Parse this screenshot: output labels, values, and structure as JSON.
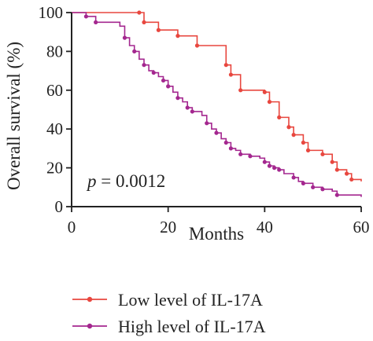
{
  "chart_data": {
    "type": "line",
    "xlabel": "Months",
    "ylabel": "Overall survival (%)",
    "xlim": [
      0,
      60
    ],
    "ylim": [
      0,
      100
    ],
    "xticks": [
      0,
      20,
      40,
      60
    ],
    "yticks": [
      0,
      20,
      40,
      60,
      80,
      100
    ],
    "xtick_labels": [
      "0",
      "20",
      "40",
      "60"
    ],
    "ytick_labels": [
      "0",
      "20",
      "40",
      "60",
      "80",
      "100"
    ],
    "grid": false,
    "legend_position": "bottom",
    "annotation": {
      "label_italic": "p",
      "text": " = 0.0012"
    },
    "series": [
      {
        "name": "Low level of IL-17A",
        "color": "#e8473f",
        "step": "post",
        "points": [
          [
            0,
            100
          ],
          [
            14,
            100
          ],
          [
            15,
            95
          ],
          [
            18,
            91
          ],
          [
            22,
            88
          ],
          [
            26,
            83
          ],
          [
            32,
            73
          ],
          [
            33,
            68
          ],
          [
            35,
            60
          ],
          [
            40,
            59
          ],
          [
            41,
            54
          ],
          [
            43,
            46
          ],
          [
            45,
            41
          ],
          [
            46,
            37
          ],
          [
            48,
            33
          ],
          [
            49,
            29
          ],
          [
            52,
            27
          ],
          [
            54,
            23
          ],
          [
            55,
            19
          ],
          [
            57,
            17
          ],
          [
            58,
            14
          ],
          [
            60,
            13
          ]
        ],
        "censored": [
          [
            14,
            100
          ],
          [
            15,
            95
          ],
          [
            18,
            91
          ],
          [
            22,
            88
          ],
          [
            26,
            83
          ],
          [
            32,
            73
          ],
          [
            33,
            68
          ],
          [
            35,
            60
          ],
          [
            40,
            59
          ],
          [
            41,
            54
          ],
          [
            43,
            46
          ],
          [
            45,
            41
          ],
          [
            46,
            37
          ],
          [
            48,
            33
          ],
          [
            49,
            29
          ],
          [
            52,
            27
          ],
          [
            54,
            23
          ],
          [
            55,
            19
          ],
          [
            57,
            17
          ],
          [
            58,
            14
          ]
        ]
      },
      {
        "name": "High level of IL-17A",
        "color": "#a4278f",
        "step": "post",
        "points": [
          [
            0,
            100
          ],
          [
            3,
            98
          ],
          [
            5,
            95
          ],
          [
            10,
            93
          ],
          [
            11,
            87
          ],
          [
            12,
            83
          ],
          [
            13,
            80
          ],
          [
            14,
            76
          ],
          [
            15,
            73
          ],
          [
            16,
            70
          ],
          [
            17,
            69
          ],
          [
            18,
            67
          ],
          [
            19,
            65
          ],
          [
            20,
            62
          ],
          [
            21,
            59
          ],
          [
            22,
            56
          ],
          [
            23,
            54
          ],
          [
            24,
            51
          ],
          [
            25,
            49
          ],
          [
            27,
            47
          ],
          [
            28,
            43
          ],
          [
            29,
            40
          ],
          [
            30,
            38
          ],
          [
            31,
            35
          ],
          [
            32,
            33
          ],
          [
            33,
            30
          ],
          [
            34,
            29
          ],
          [
            35,
            27
          ],
          [
            37,
            26
          ],
          [
            39,
            25
          ],
          [
            40,
            23
          ],
          [
            41,
            21
          ],
          [
            42,
            20
          ],
          [
            43,
            19
          ],
          [
            44,
            17
          ],
          [
            46,
            15
          ],
          [
            47,
            13
          ],
          [
            48,
            12
          ],
          [
            50,
            10
          ],
          [
            52,
            9
          ],
          [
            54,
            8
          ],
          [
            55,
            6
          ],
          [
            60,
            5
          ]
        ],
        "censored": [
          [
            3,
            98
          ],
          [
            5,
            95
          ],
          [
            11,
            87
          ],
          [
            13,
            80
          ],
          [
            15,
            73
          ],
          [
            17,
            69
          ],
          [
            19,
            65
          ],
          [
            20,
            62
          ],
          [
            22,
            56
          ],
          [
            24,
            51
          ],
          [
            25,
            49
          ],
          [
            28,
            43
          ],
          [
            30,
            38
          ],
          [
            32,
            33
          ],
          [
            33,
            30
          ],
          [
            35,
            27
          ],
          [
            37,
            26
          ],
          [
            40,
            23
          ],
          [
            41,
            21
          ],
          [
            42,
            20
          ],
          [
            43,
            19
          ],
          [
            46,
            15
          ],
          [
            48,
            12
          ],
          [
            50,
            10
          ],
          [
            52,
            9
          ],
          [
            55,
            6
          ]
        ]
      }
    ]
  }
}
